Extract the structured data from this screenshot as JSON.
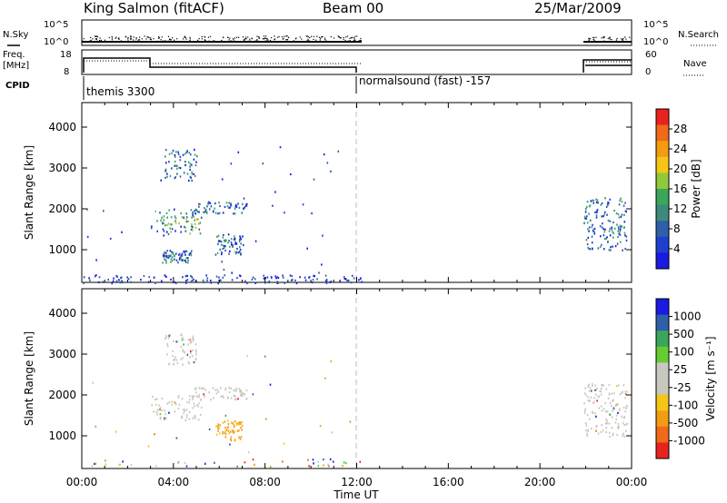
{
  "header": {
    "station": "King Salmon (fitACF)",
    "beam": "Beam 00",
    "date": "25/Mar/2009"
  },
  "top_panels": {
    "nsky_label": "N.Sky",
    "nsearch_label": "N.Search",
    "nsky_ticks": [
      "10^5",
      "10^0"
    ],
    "nsearch_ticks": [
      "10^5",
      "10^0"
    ],
    "freq_label_1": "Freq.",
    "freq_label_2": "[MHz]",
    "freq_ticks": [
      "18",
      "8"
    ],
    "nave_label": "Nave",
    "nave_ticks": [
      "60",
      "0"
    ],
    "cpid_label": "CPID",
    "cpid_segments": [
      {
        "label": "themis 3300",
        "start_hour": 0,
        "end_hour": 12.0
      },
      {
        "label": "normalsound (fast) -157",
        "start_hour": 12.0,
        "end_hour": 24.0
      }
    ]
  },
  "x_axis": {
    "label": "Time UT",
    "ticks": [
      "00:00",
      "04:00",
      "08:00",
      "12:00",
      "16:00",
      "20:00",
      "00:00"
    ],
    "range_hours": [
      0,
      24
    ]
  },
  "power_colorbar": {
    "label": "Power [dB]",
    "ticks": [
      "28",
      "24",
      "20",
      "16",
      "12",
      "8",
      "4"
    ],
    "colors": [
      "#e8231f",
      "#f06a1a",
      "#f39c12",
      "#f5c518",
      "#8fc93a",
      "#3aa65a",
      "#3e8a7a",
      "#2e5fa8",
      "#1e3fd0",
      "#1a1ae0"
    ]
  },
  "velocity_colorbar": {
    "label": "Velocity [m s⁻¹]",
    "ticks": [
      "1000",
      "500",
      "100",
      "25",
      "-25",
      "-100",
      "-500",
      "-1000"
    ],
    "colors": [
      "#1a1ae0",
      "#2e5fa8",
      "#3aa65a",
      "#66cc33",
      "#c8c8c0",
      "#c8c8c0",
      "#f5c518",
      "#f39c12",
      "#f06a1a",
      "#e8231f"
    ]
  },
  "chart_data": [
    {
      "type": "heatmap",
      "title": "",
      "xlabel": "Time UT",
      "ylabel": "Slant Range [km]",
      "xlim": [
        0,
        24
      ],
      "ylim": [
        200,
        4600
      ],
      "y_ticks": [
        1000,
        2000,
        3000,
        4000
      ],
      "colorbar": "Power [dB]",
      "scatter_regions": [
        {
          "t_start": 3.0,
          "t_end": 5.2,
          "r_start": 1400,
          "r_end": 2000,
          "value_hint": "Power [dB]"
        },
        {
          "t_start": 4.8,
          "t_end": 7.2,
          "r_start": 1900,
          "r_end": 2200,
          "value_hint": "Power [dB]"
        },
        {
          "t_start": 3.6,
          "t_end": 5.0,
          "r_start": 2700,
          "r_end": 3500,
          "value_hint": "Power [dB]"
        },
        {
          "t_start": 5.8,
          "t_end": 7.0,
          "r_start": 900,
          "r_end": 1400,
          "value_hint": "Power [dB]"
        },
        {
          "t_start": 3.5,
          "t_end": 4.8,
          "r_start": 700,
          "r_end": 1000,
          "value_hint": "Power [dB]"
        },
        {
          "t_start": 21.9,
          "t_end": 23.8,
          "r_start": 1000,
          "r_end": 2300,
          "value_hint": "Power [dB]"
        },
        {
          "t_start": 0.0,
          "t_end": 12.2,
          "r_start": 200,
          "r_end": 400,
          "value_hint": "Power [dB]"
        }
      ]
    },
    {
      "type": "heatmap",
      "title": "",
      "xlabel": "Time UT",
      "ylabel": "Slant Range [km]",
      "xlim": [
        0,
        24
      ],
      "ylim": [
        200,
        4600
      ],
      "y_ticks": [
        1000,
        2000,
        3000,
        4000
      ],
      "colorbar": "Velocity [m s⁻¹]",
      "scatter_regions": [
        {
          "t_start": 3.0,
          "t_end": 5.2,
          "r_start": 1400,
          "r_end": 2000,
          "velocity_class": "ground scatter"
        },
        {
          "t_start": 4.8,
          "t_end": 7.2,
          "r_start": 1900,
          "r_end": 2200,
          "velocity_class": "ground scatter"
        },
        {
          "t_start": 3.6,
          "t_end": 5.0,
          "r_start": 2700,
          "r_end": 3500,
          "velocity_class": "ground scatter"
        },
        {
          "t_start": 5.8,
          "t_end": 7.0,
          "r_start": 900,
          "r_end": 1400,
          "velocity_class": "-100 to -500"
        },
        {
          "t_start": 21.9,
          "t_end": 23.8,
          "r_start": 1000,
          "r_end": 2300,
          "velocity_class": "ground scatter"
        }
      ]
    }
  ]
}
